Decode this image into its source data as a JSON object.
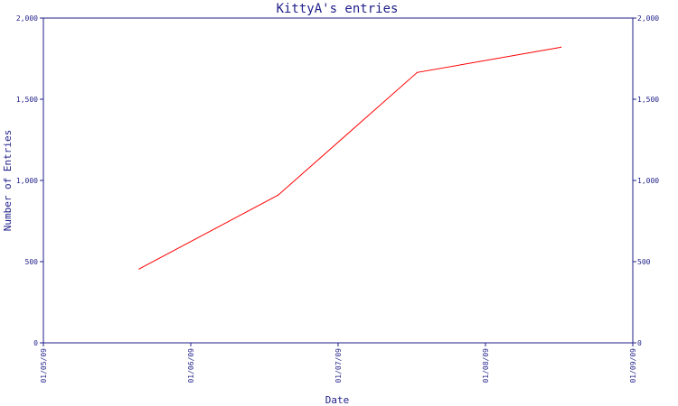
{
  "chart_data": {
    "type": "line",
    "title": "KittyA's entries",
    "xlabel": "Date",
    "ylabel": "Number of Entries",
    "x_ticks": [
      "01/05/09",
      "01/06/09",
      "01/07/09",
      "01/08/09",
      "01/09/09"
    ],
    "y_ticks": [
      "0",
      "500",
      "1,000",
      "1,500",
      "2,000"
    ],
    "y_ticks_right": [
      "0",
      "500",
      "1,000",
      "1,500",
      "2,000"
    ],
    "ylim": [
      0,
      2000
    ],
    "xlim": [
      "2009-05-01",
      "2009-09-01"
    ],
    "series": [
      {
        "x": [
          "2009-05-21",
          "2009-06-19",
          "2009-07-18",
          "2009-08-17"
        ],
        "values": [
          455,
          910,
          1665,
          1820
        ]
      }
    ],
    "grid": false,
    "legend": "none"
  },
  "colors": {
    "axis": "#1f1f8a",
    "line": "#ff0000"
  }
}
